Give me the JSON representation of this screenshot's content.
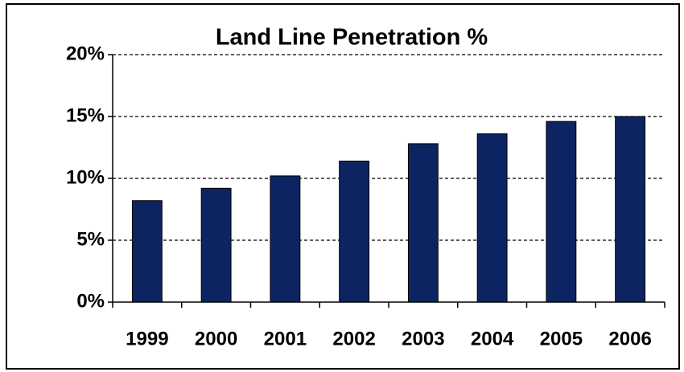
{
  "chart_data": {
    "type": "bar",
    "title": "Land Line Penetration %",
    "categories": [
      "1999",
      "2000",
      "2001",
      "2002",
      "2003",
      "2004",
      "2005",
      "2006"
    ],
    "values": [
      8.2,
      9.2,
      10.2,
      11.4,
      12.8,
      13.6,
      14.6,
      15.0
    ],
    "color": "#0c2461",
    "ylim": [
      0,
      20
    ],
    "yticks": [
      {
        "value": 0,
        "label": "0%"
      },
      {
        "value": 5,
        "label": "5%"
      },
      {
        "value": 10,
        "label": "10%"
      },
      {
        "value": 15,
        "label": "15%"
      },
      {
        "value": 20,
        "label": "20%"
      }
    ],
    "grid": true
  }
}
